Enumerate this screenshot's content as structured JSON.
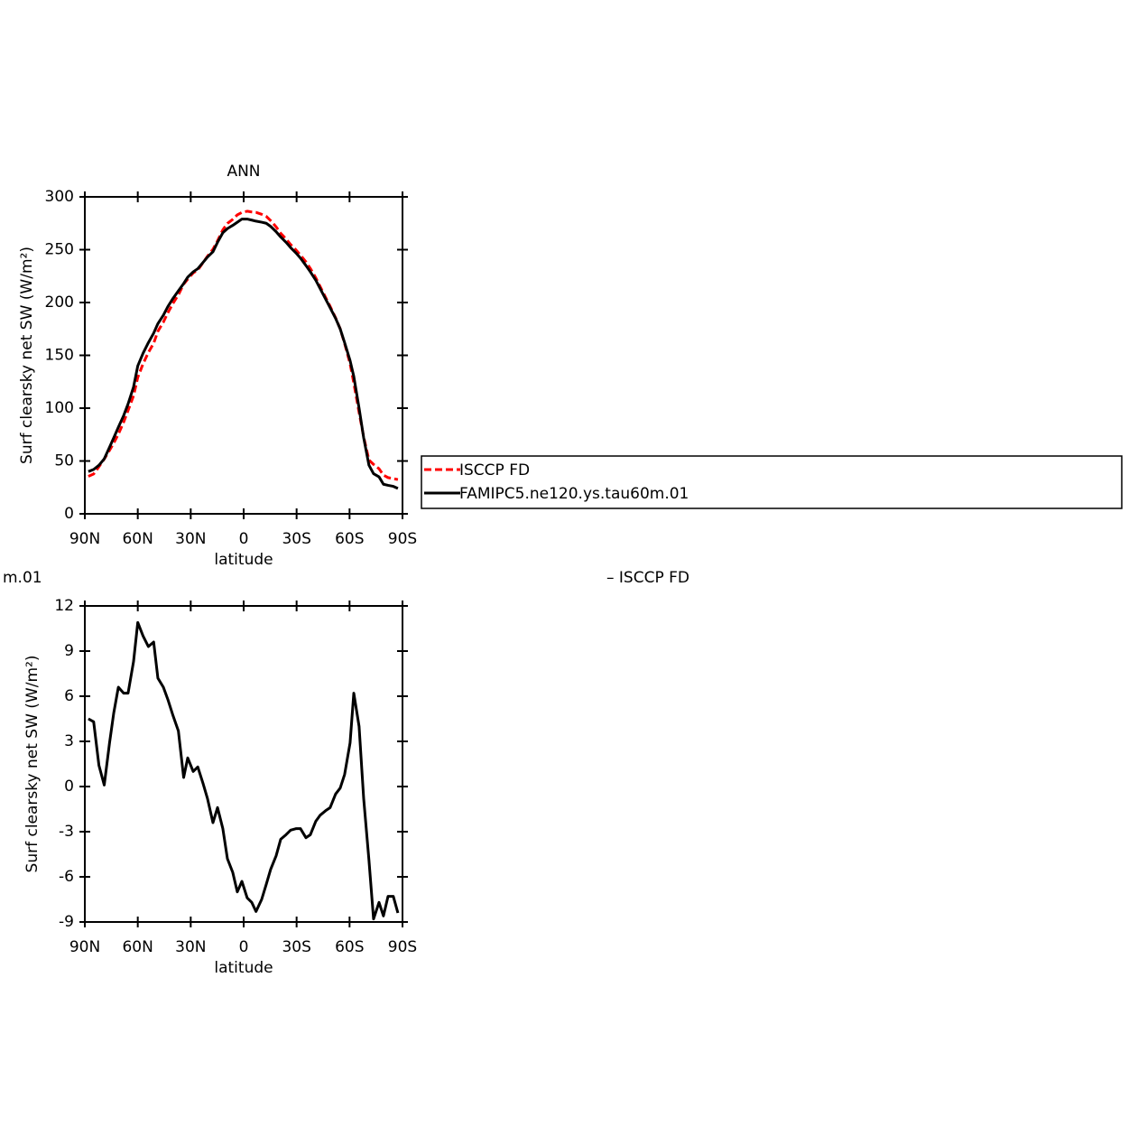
{
  "chart_data": [
    {
      "type": "line",
      "title": "ANN",
      "xlabel": "latitude",
      "ylabel": "Surf clearsky net SW (W/m²)",
      "x": [
        88,
        85,
        82,
        79,
        76,
        73.6,
        71,
        68,
        65.5,
        62.4,
        60,
        57,
        54,
        51,
        48.6,
        45.5,
        43,
        40,
        37,
        34,
        31.7,
        28.6,
        26,
        23,
        20.5,
        17.4,
        14.8,
        11.8,
        9.2,
        6.2,
        3.6,
        1,
        -2,
        -4.6,
        -7,
        -10.2,
        -12.8,
        -15.3,
        -18.4,
        -21,
        -24,
        -26.6,
        -29.6,
        -32.2,
        -35.3,
        -37.8,
        -40.9,
        -43.4,
        -46.5,
        -49,
        -52.1,
        -54.7,
        -57.2,
        -60.3,
        -62.4,
        -65.4,
        -68,
        -71,
        -73.6,
        -76.7,
        -79.2,
        -81.8,
        -84.8,
        -87.4
      ],
      "series": [
        {
          "name": "ISCCP FD",
          "color": "#ff0000",
          "linestyle": "dashed",
          "values": [
            35.5,
            37.7,
            44.6,
            51.9,
            60.1,
            67.1,
            75.4,
            86.8,
            97.8,
            111.7,
            129.1,
            142,
            152.7,
            161.4,
            172.8,
            181.4,
            190.2,
            199.3,
            207.3,
            217.4,
            222.1,
            228,
            230.7,
            237.8,
            243.8,
            250.4,
            258.4,
            268.8,
            274.8,
            278.7,
            283,
            285.3,
            286.4,
            285.7,
            285.3,
            283.5,
            281.5,
            277.5,
            271.6,
            265.5,
            260.2,
            254.9,
            249.8,
            244.8,
            238.4,
            232.2,
            223.3,
            214.9,
            204.6,
            196.4,
            185.5,
            175.1,
            161.2,
            142.1,
            123.8,
            96,
            72.8,
            50.9,
            46.8,
            42.7,
            36.6,
            34.3,
            33.3,
            32.4
          ]
        },
        {
          "name": "FAMIPC5.ne120.ys.tau60m.01",
          "color": "#000000",
          "linestyle": "solid",
          "values": [
            40,
            42,
            46,
            52,
            63,
            72,
            82,
            93,
            104,
            120,
            140,
            152,
            162,
            171,
            180,
            188,
            196,
            204,
            211,
            218,
            224,
            229,
            232,
            238,
            243,
            248,
            257,
            266,
            270,
            273,
            276,
            279,
            279,
            278,
            277,
            276,
            275,
            272,
            267,
            262,
            257,
            252,
            247,
            242,
            235,
            229,
            221,
            213,
            203,
            195,
            185,
            175,
            162,
            145,
            130,
            100,
            72,
            46,
            38,
            35,
            28,
            27,
            26,
            24
          ]
        }
      ],
      "xlim": [
        90,
        -90
      ],
      "xticks": [
        {
          "value": 90,
          "label": "90N"
        },
        {
          "value": 60,
          "label": "60N"
        },
        {
          "value": 30,
          "label": "30N"
        },
        0,
        {
          "value": -30,
          "label": "30S"
        },
        {
          "value": -60,
          "label": "60S"
        },
        {
          "value": -90,
          "label": "90S"
        }
      ],
      "ylim": [
        0,
        300
      ],
      "yticks": [
        0,
        50,
        100,
        150,
        200,
        250,
        300
      ],
      "legend": "right"
    },
    {
      "type": "line",
      "title_parts": [
        "m.01",
        "– ISCCP FD"
      ],
      "xlabel": "latitude",
      "ylabel": "Surf clearsky net SW (W/m²)",
      "x": [
        88,
        85,
        82,
        79,
        76,
        73.6,
        71,
        68,
        65.5,
        62.4,
        60,
        57,
        54,
        51,
        48.6,
        45.5,
        43,
        40,
        37,
        34,
        31.7,
        28.6,
        26,
        23,
        20.5,
        17.4,
        14.8,
        11.8,
        9.2,
        6.2,
        3.6,
        1,
        -2,
        -4.6,
        -7,
        -10.2,
        -12.8,
        -15.3,
        -18.4,
        -21,
        -24,
        -26.6,
        -29.6,
        -32.2,
        -35.3,
        -37.8,
        -40.9,
        -43.4,
        -46.5,
        -49,
        -52.1,
        -54.7,
        -57.2,
        -60.3,
        -62.4,
        -65.4,
        -68,
        -71,
        -73.6,
        -76.7,
        -79.2,
        -81.8,
        -84.8,
        -87.4
      ],
      "color": "#000000",
      "values": [
        4.5,
        4.3,
        1.4,
        0.1,
        2.9,
        4.9,
        6.6,
        6.2,
        6.2,
        8.3,
        10.9,
        10,
        9.3,
        9.6,
        7.2,
        6.6,
        5.8,
        4.7,
        3.7,
        0.6,
        1.9,
        1,
        1.3,
        0.2,
        -0.8,
        -2.4,
        -1.4,
        -2.8,
        -4.8,
        -5.7,
        -7,
        -6.3,
        -7.4,
        -7.7,
        -8.3,
        -7.5,
        -6.5,
        -5.5,
        -4.6,
        -3.5,
        -3.2,
        -2.9,
        -2.8,
        -2.8,
        -3.4,
        -3.2,
        -2.3,
        -1.9,
        -1.6,
        -1.4,
        -0.5,
        -0.1,
        0.8,
        2.9,
        6.2,
        4,
        -0.8,
        -4.9,
        -8.8,
        -7.7,
        -8.6,
        -7.3,
        -7.3,
        -8.4
      ],
      "xlim": [
        90,
        -90
      ],
      "xticks": [
        {
          "value": 90,
          "label": "90N"
        },
        {
          "value": 60,
          "label": "60N"
        },
        {
          "value": 30,
          "label": "30N"
        },
        0,
        {
          "value": -30,
          "label": "30S"
        },
        {
          "value": -60,
          "label": "60S"
        },
        {
          "value": -90,
          "label": "90S"
        }
      ],
      "ylim": [
        -9,
        12
      ],
      "yticks": [
        -9,
        -6,
        -3,
        0,
        3,
        6,
        9,
        12
      ]
    }
  ]
}
